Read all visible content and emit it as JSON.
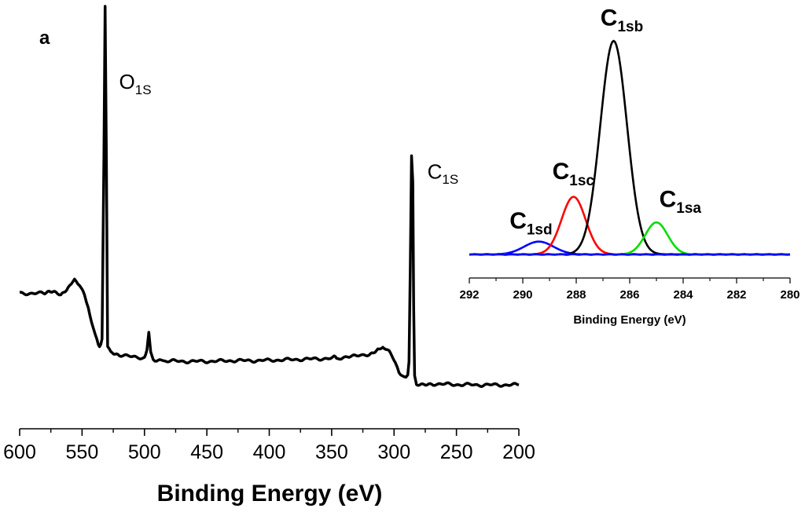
{
  "chart_data": [
    {
      "type": "line",
      "panel": "main",
      "panel_label": "a",
      "xlabel": "Binding Energy (eV)",
      "ylabel": "",
      "xlim": [
        600,
        200
      ],
      "x_ticks": [
        600,
        550,
        500,
        450,
        400,
        350,
        300,
        250,
        200
      ],
      "x_tick_labels": [
        "600",
        "550",
        "500",
        "450",
        "400",
        "350",
        "300",
        "250",
        "200"
      ],
      "y_units": "relative intensity (0-1)",
      "ylim": [
        0,
        1
      ],
      "series": [
        {
          "name": "XPS survey",
          "color": "#000000",
          "points": [
            [
              600,
              0.232
            ],
            [
              590,
              0.232
            ],
            [
              580,
              0.232
            ],
            [
              573,
              0.236
            ],
            [
              567,
              0.228
            ],
            [
              560,
              0.252
            ],
            [
              556,
              0.27
            ],
            [
              552,
              0.255
            ],
            [
              548,
              0.225
            ],
            [
              545,
              0.19
            ],
            [
              541,
              0.14
            ],
            [
              538,
              0.11
            ],
            [
              536,
              0.085
            ],
            [
              534,
              0.11
            ],
            [
              532.5,
              0.6
            ],
            [
              531.5,
              1.0
            ],
            [
              530.5,
              0.6
            ],
            [
              529.5,
              0.09
            ],
            [
              527,
              0.072
            ],
            [
              520,
              0.068
            ],
            [
              510,
              0.062
            ],
            [
              500,
              0.06
            ],
            [
              498,
              0.08
            ],
            [
              496.5,
              0.128
            ],
            [
              495,
              0.075
            ],
            [
              493,
              0.055
            ],
            [
              485,
              0.052
            ],
            [
              470,
              0.05
            ],
            [
              450,
              0.05
            ],
            [
              430,
              0.052
            ],
            [
              410,
              0.052
            ],
            [
              390,
              0.054
            ],
            [
              370,
              0.056
            ],
            [
              350,
              0.058
            ],
            [
              348,
              0.066
            ],
            [
              346,
              0.058
            ],
            [
              330,
              0.064
            ],
            [
              320,
              0.07
            ],
            [
              313,
              0.08
            ],
            [
              309,
              0.088
            ],
            [
              304,
              0.075
            ],
            [
              299,
              0.05
            ],
            [
              296,
              0.022
            ],
            [
              292,
              0.005
            ],
            [
              289,
              0.01
            ],
            [
              288,
              0.05
            ],
            [
              287,
              0.3
            ],
            [
              286,
              0.6
            ],
            [
              285,
              0.53
            ],
            [
              284.3,
              0.2
            ],
            [
              283.5,
              0.01
            ],
            [
              282,
              -0.01
            ],
            [
              270,
              -0.01
            ],
            [
              250,
              -0.012
            ],
            [
              230,
              -0.013
            ],
            [
              200,
              -0.013
            ]
          ]
        }
      ],
      "annotations": [
        {
          "text": "O",
          "sub": "1S",
          "x": 531,
          "y": 0.8
        },
        {
          "text": "C",
          "sub": "1S",
          "x": 284,
          "y": 0.56
        }
      ]
    },
    {
      "type": "line",
      "panel": "inset",
      "xlabel": "Binding Energy (eV)",
      "ylabel": "",
      "xlim": [
        292,
        280
      ],
      "x_ticks": [
        292,
        290,
        288,
        286,
        284,
        282,
        280
      ],
      "x_tick_labels": [
        "292",
        "290",
        "288",
        "286",
        "284",
        "282",
        "280"
      ],
      "y_units": "relative intensity (0-1)",
      "ylim": [
        0,
        1
      ],
      "series": [
        {
          "name": "C1sd",
          "color": "#0000ff",
          "center": 289.4,
          "height": 0.06,
          "sigma": 0.55
        },
        {
          "name": "C1sc",
          "color": "#ff0000",
          "center": 288.1,
          "height": 0.27,
          "sigma": 0.45
        },
        {
          "name": "C1sb",
          "color": "#000000",
          "center": 286.6,
          "height": 1.0,
          "sigma": 0.5
        },
        {
          "name": "C1sa",
          "color": "#00dd00",
          "center": 285.0,
          "height": 0.15,
          "sigma": 0.42
        },
        {
          "name": "baseline",
          "color": "#0000ff",
          "center": null,
          "height": 0,
          "sigma": null
        }
      ],
      "annotations": [
        {
          "text": "C",
          "sub": "1sd",
          "x": 290.2,
          "y": 0.1
        },
        {
          "text": "C",
          "sub": "1sc",
          "x": 288.6,
          "y": 0.33
        },
        {
          "text": "C",
          "sub": "1sb",
          "x": 286.8,
          "y": 1.05
        },
        {
          "text": "C",
          "sub": "1sa",
          "x": 284.6,
          "y": 0.2
        }
      ]
    }
  ]
}
